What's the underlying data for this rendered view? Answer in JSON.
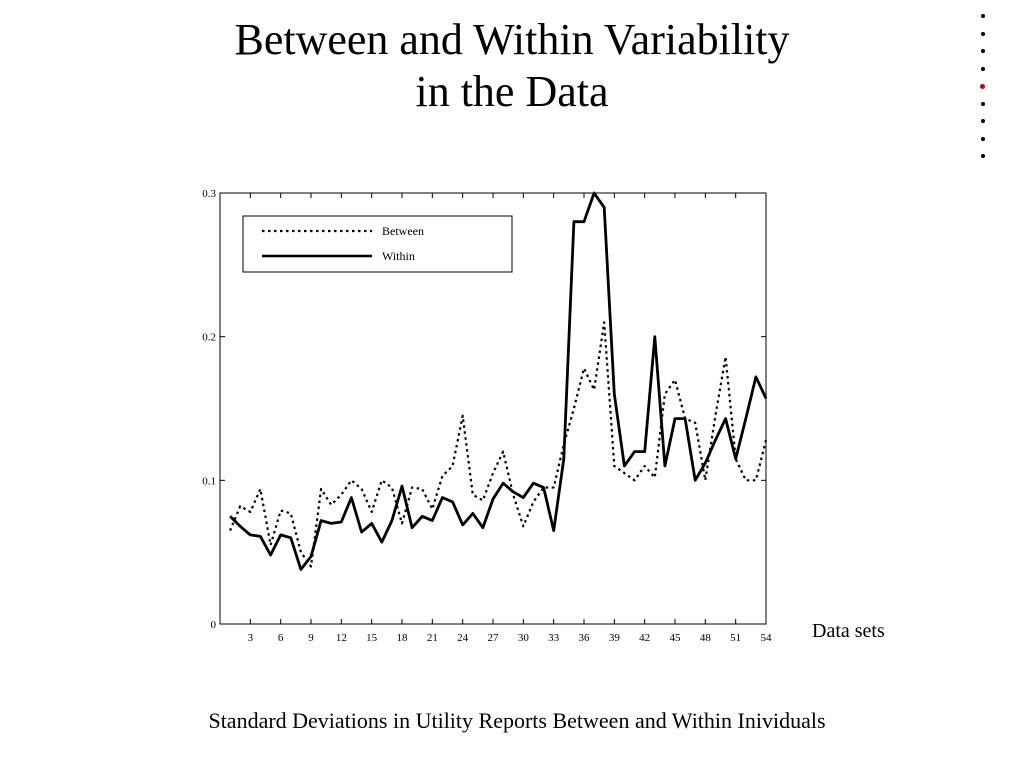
{
  "slide": {
    "title_line1": "Between and Within Variability",
    "title_line2": "in the Data",
    "caption": "Standard Deviations in Utility Reports Between and Within Inividuals",
    "nav_dot_count": 9,
    "nav_current_index": 4,
    "nav_dot_color": "#000000",
    "nav_current_color": "#cc0000"
  },
  "chart_data": {
    "type": "line",
    "title": "",
    "xlabel": "Data sets",
    "ylabel": "",
    "xlim": [
      0,
      54
    ],
    "ylim": [
      0,
      0.3
    ],
    "x_ticks": [
      3,
      6,
      9,
      12,
      15,
      18,
      21,
      24,
      27,
      30,
      33,
      36,
      39,
      42,
      45,
      48,
      51,
      54
    ],
    "y_ticks": [
      0,
      0.1,
      0.2,
      0.3
    ],
    "y_tick_labels": [
      "0",
      "0.1",
      "0.2",
      "0.3"
    ],
    "grid": false,
    "legend_position": "top-left",
    "x": [
      1,
      2,
      3,
      4,
      5,
      6,
      7,
      8,
      9,
      10,
      11,
      12,
      13,
      14,
      15,
      16,
      17,
      18,
      19,
      20,
      21,
      22,
      23,
      24,
      25,
      26,
      27,
      28,
      29,
      30,
      31,
      32,
      33,
      34,
      35,
      36,
      37,
      38,
      39,
      40,
      41,
      42,
      43,
      44,
      45,
      46,
      47,
      48,
      49,
      50,
      51,
      52,
      53,
      54
    ],
    "series": [
      {
        "name": "Between",
        "style": "dotted",
        "values": [
          0.065,
          0.082,
          0.078,
          0.094,
          0.055,
          0.079,
          0.077,
          0.05,
          0.04,
          0.094,
          0.083,
          0.09,
          0.1,
          0.094,
          0.078,
          0.1,
          0.095,
          0.07,
          0.095,
          0.094,
          0.08,
          0.103,
          0.11,
          0.145,
          0.09,
          0.086,
          0.105,
          0.12,
          0.09,
          0.068,
          0.085,
          0.095,
          0.095,
          0.125,
          0.15,
          0.178,
          0.163,
          0.21,
          0.11,
          0.105,
          0.1,
          0.11,
          0.102,
          0.16,
          0.17,
          0.143,
          0.14,
          0.1,
          0.145,
          0.186,
          0.115,
          0.1,
          0.1,
          0.128
        ]
      },
      {
        "name": "Within",
        "style": "solid",
        "values": [
          0.075,
          0.068,
          0.062,
          0.061,
          0.048,
          0.062,
          0.06,
          0.038,
          0.047,
          0.072,
          0.07,
          0.071,
          0.088,
          0.064,
          0.07,
          0.057,
          0.072,
          0.096,
          0.067,
          0.075,
          0.072,
          0.088,
          0.085,
          0.069,
          0.077,
          0.067,
          0.087,
          0.098,
          0.092,
          0.088,
          0.098,
          0.095,
          0.065,
          0.115,
          0.28,
          0.28,
          0.3,
          0.29,
          0.16,
          0.11,
          0.12,
          0.12,
          0.2,
          0.11,
          0.143,
          0.143,
          0.1,
          0.112,
          0.128,
          0.143,
          0.115,
          0.143,
          0.172,
          0.157
        ]
      }
    ]
  }
}
